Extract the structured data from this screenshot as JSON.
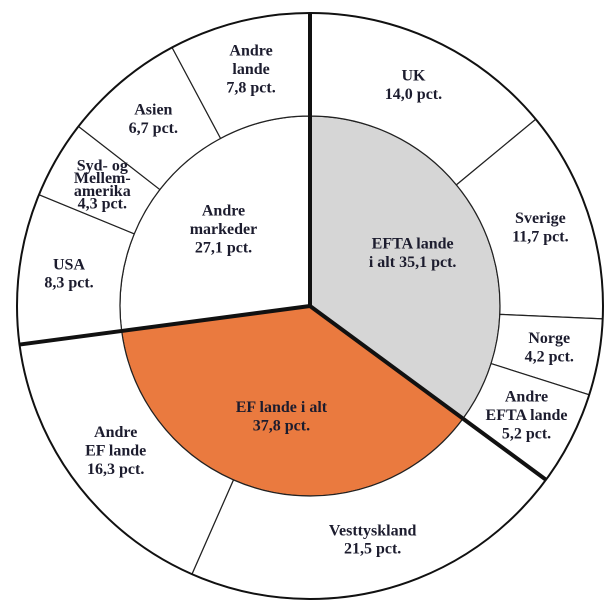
{
  "chart_data": {
    "type": "sunburst",
    "groups": [
      {
        "name": [
          "EFTA lande"
        ],
        "value": 35.1,
        "value_label": "i alt 35,1 pct.",
        "color": "#d6d6d6",
        "children": [
          {
            "name": [
              "UK"
            ],
            "value": 14.0,
            "value_label": "14,0 pct."
          },
          {
            "name": [
              "Sverige"
            ],
            "value": 11.7,
            "value_label": "11,7 pct."
          },
          {
            "name": [
              "Norge"
            ],
            "value": 4.2,
            "value_label": "4,2 pct."
          },
          {
            "name": [
              "Andre",
              "EFTA lande"
            ],
            "value": 5.2,
            "value_label": "5,2 pct."
          }
        ]
      },
      {
        "name": [
          "EF lande i alt"
        ],
        "value": 37.8,
        "value_label": "37,8 pct.",
        "color": "#ea7a3f",
        "children": [
          {
            "name": [
              "Vesttyskland"
            ],
            "value": 21.5,
            "value_label": "21,5 pct."
          },
          {
            "name": [
              "Andre",
              "EF lande"
            ],
            "value": 16.3,
            "value_label": "16,3 pct."
          }
        ]
      },
      {
        "name": [
          "Andre",
          "markeder"
        ],
        "value": 27.1,
        "value_label": "27,1 pct.",
        "color": "#ffffff",
        "children": [
          {
            "name": [
              "USA"
            ],
            "value": 8.3,
            "value_label": "8,3 pct."
          },
          {
            "name": [
              "Syd- og",
              "Mellem-",
              "amerika"
            ],
            "value": 4.3,
            "value_label": "4,3 pct."
          },
          {
            "name": [
              "Asien"
            ],
            "value": 6.7,
            "value_label": "6,7 pct."
          },
          {
            "name": [
              "Andre",
              "lande"
            ],
            "value": 7.8,
            "value_label": "7,8 pct."
          }
        ]
      }
    ]
  }
}
